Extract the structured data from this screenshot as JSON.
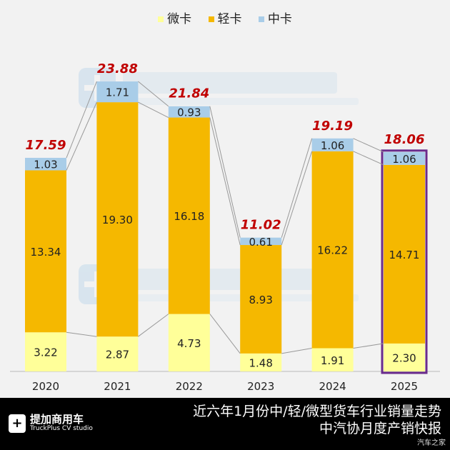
{
  "legend": [
    {
      "label": "微卡",
      "color": "#ffff99"
    },
    {
      "label": "轻卡",
      "color": "#f5b800"
    },
    {
      "label": "中卡",
      "color": "#a9cde8"
    }
  ],
  "watermark": {
    "name": "提加商用车",
    "sub": "TruckPlus CV studio"
  },
  "footer": {
    "logo_name": "提加商用车",
    "logo_sub": "TruckPlus CV studio",
    "title": "近六年1月份中/轻/微型货车行业销量走势",
    "source": "中汽协月度产销快报",
    "corner": "汽车之家"
  },
  "chart_data": {
    "type": "bar",
    "stacked": true,
    "categories": [
      "2020",
      "2021",
      "2022",
      "2023",
      "2024",
      "2025"
    ],
    "series": [
      {
        "name": "微卡",
        "color": "#ffff99",
        "values": [
          3.22,
          2.87,
          4.73,
          1.48,
          1.91,
          2.3
        ]
      },
      {
        "name": "轻卡",
        "color": "#f5b800",
        "values": [
          13.34,
          19.3,
          16.18,
          8.93,
          16.22,
          14.71
        ]
      },
      {
        "name": "中卡",
        "color": "#a9cde8",
        "values": [
          1.03,
          1.71,
          0.93,
          0.61,
          1.06,
          1.06
        ]
      }
    ],
    "totals": [
      "17.59",
      "23.88",
      "21.84",
      "11.02",
      "19.19",
      "18.06"
    ],
    "highlight": "2025",
    "highlight_color": "#6a2c8c",
    "total_color": "#c00000",
    "ylim": [
      0,
      24
    ],
    "legend_position": "top-center"
  }
}
